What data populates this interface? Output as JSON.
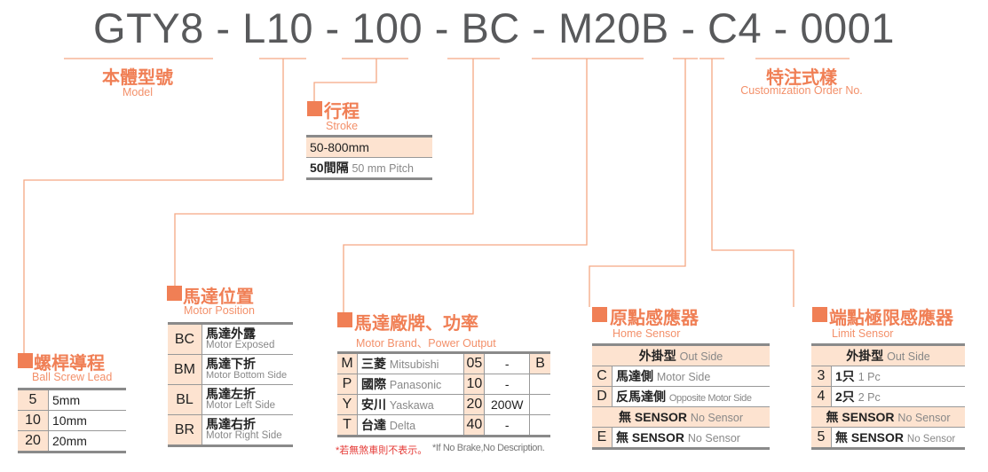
{
  "model_code": "GTY8 - L10 - 100 - BC - M20B - C4 - 0001",
  "accent_color": "#f07f55",
  "model": {
    "title": "本體型號",
    "subtitle": "Model"
  },
  "custom": {
    "title": "特注式樣",
    "subtitle": "Customization Order No."
  },
  "stroke": {
    "title": "行程",
    "subtitle": "Stroke",
    "rows": [
      "50-800mm",
      "50間隔"
    ],
    "pitch_en": "50 mm Pitch"
  },
  "lead": {
    "title": "螺桿導程",
    "subtitle": "Ball Screw Lead",
    "rows": [
      {
        "code": "5",
        "value": "5mm"
      },
      {
        "code": "10",
        "value": "10mm"
      },
      {
        "code": "20",
        "value": "20mm"
      }
    ]
  },
  "position": {
    "title": "馬達位置",
    "subtitle": "Motor Position",
    "rows": [
      {
        "code": "BC",
        "cn": "馬達外露",
        "en": "Motor Exposed"
      },
      {
        "code": "BM",
        "cn": "馬達下折",
        "en": "Motor Bottom Side"
      },
      {
        "code": "BL",
        "cn": "馬達左折",
        "en": "Motor Left Side"
      },
      {
        "code": "BR",
        "cn": "馬達右折",
        "en": "Motor Right Side"
      }
    ]
  },
  "brand": {
    "title": "馬達廠牌、功率",
    "subtitle": "Motor Brand、Power Output",
    "rows": [
      {
        "code": "M",
        "cn": "三菱",
        "en": "Mitsubishi",
        "power_code": "05",
        "power": "-"
      },
      {
        "code": "P",
        "cn": "國際",
        "en": "Panasonic",
        "power_code": "10",
        "power": "-"
      },
      {
        "code": "Y",
        "cn": "安川",
        "en": "Yaskawa",
        "power_code": "20",
        "power": "200W"
      },
      {
        "code": "T",
        "cn": "台達",
        "en": "Delta",
        "power_code": "40",
        "power": "-"
      }
    ],
    "brake": "B",
    "note_cn": "*若無煞車則不表示。",
    "note_en": "*If No Brake,No Description."
  },
  "home": {
    "title": "原點感應器",
    "subtitle": "Home Sensor",
    "header_cn": "外掛型",
    "header_en": "Out Side",
    "rows": [
      {
        "code": "C",
        "cn": "馬達側",
        "en": "Motor Side"
      },
      {
        "code": "D",
        "cn": "反馬達側",
        "en": "Opposite Motor Side"
      }
    ],
    "none_header_cn": "無 SENSOR",
    "none_header_en": "No Sensor",
    "none_row": {
      "code": "E",
      "cn": "無  SENSOR",
      "en": "No Sensor"
    }
  },
  "limit": {
    "title": "端點極限感應器",
    "subtitle": "Limit Sensor",
    "header_cn": "外掛型",
    "header_en": "Out Side",
    "rows": [
      {
        "code": "3",
        "cn": "1只",
        "en": "1 Pc"
      },
      {
        "code": "4",
        "cn": "2只",
        "en": "2 Pc"
      }
    ],
    "none_header_cn": "無 SENSOR",
    "none_header_en": "No Sensor",
    "none_row": {
      "code": "5",
      "cn": "無 SENSOR",
      "en": "No Sensor"
    }
  }
}
